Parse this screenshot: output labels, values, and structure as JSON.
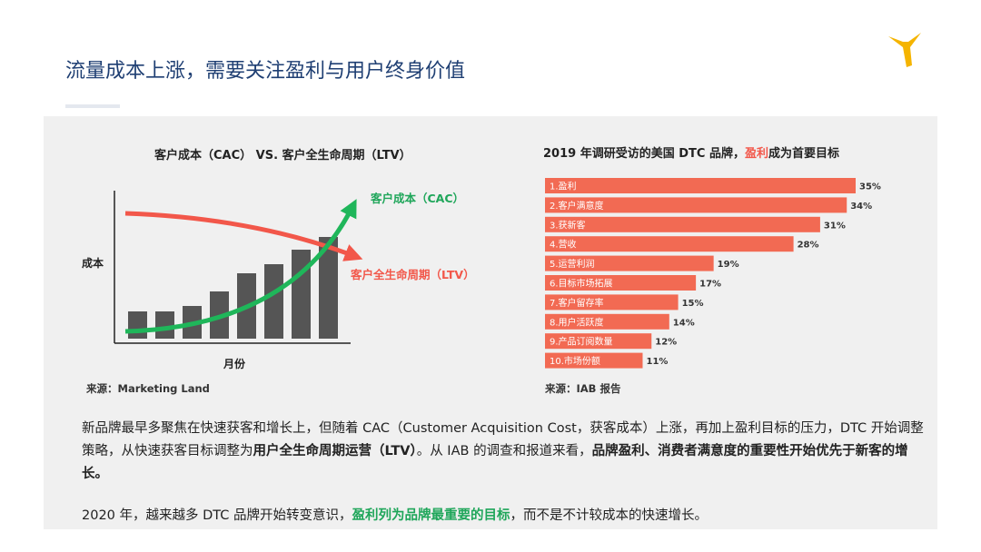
{
  "page": {
    "title": "流量成本上涨，需要关注盈利与用户终身价值"
  },
  "colors": {
    "title": "#1f3f73",
    "cac": "#1fb65a",
    "ltv": "#f2574a",
    "bars_left": "#555555",
    "bars_right": "#f26a53",
    "logo": "#f5b400"
  },
  "chart_data": [
    {
      "type": "bar",
      "title": "客户成本（CAC） VS. 客户全生命周期（LTV）",
      "xlabel": "月份",
      "ylabel": "成本",
      "categories": [
        "",
        "",
        "",
        "",
        "",
        "",
        "",
        ""
      ],
      "series": [
        {
          "name": "",
          "values": [
            1.5,
            1.5,
            1.8,
            2.6,
            3.6,
            4.1,
            4.9,
            5.6
          ]
        }
      ],
      "ylim": [
        0,
        8
      ],
      "overlays": [
        {
          "name": "客户成本（CAC）",
          "trend": "rising",
          "color": "#1fb65a"
        },
        {
          "name": "客户全生命周期（LTV）",
          "trend": "falling",
          "color": "#f2574a"
        }
      ],
      "source": "来源：Marketing Land"
    },
    {
      "type": "bar",
      "orientation": "horizontal",
      "title_parts": [
        "2019 年调研受访的美国 DTC 品牌，",
        "盈利",
        "成为首要目标"
      ],
      "categories": [
        "1.盈利",
        "2.客户满意度",
        "3.获新客",
        "4.营收",
        "5.运营利润",
        "6.目标市场拓展",
        "7.客户留存率",
        "8.用户活跃度",
        "9.产品订阅数量",
        "10.市场份额"
      ],
      "values": [
        35,
        34,
        31,
        28,
        19,
        17,
        15,
        14,
        12,
        11
      ],
      "value_labels": [
        "35%",
        "34%",
        "31%",
        "28%",
        "19%",
        "17%",
        "15%",
        "14%",
        "12%",
        "11%"
      ],
      "xlim": [
        0,
        35
      ],
      "source": "来源：IAB 报告"
    }
  ],
  "text": {
    "p1_a": "新品牌最早多聚焦在快速获客和增长上，但随着 CAC（Customer Acquisition Cost，获客成本）上涨，再加上盈利目标的压力，DTC 开始调整策略，从快速获客目标调整为",
    "p1_b": "用户全生命周期运营（LTV）",
    "p1_c": "。从 IAB 的调查和报道来看，",
    "p1_d": "品牌盈利、消费者满意度的重要性开始优先于新客的增长。",
    "p2_a": "2020 年，越来越多 DTC 品牌开始转变意识，",
    "p2_b": "盈利列为品牌最重要的目标",
    "p2_c": "，而不是不计较成本的快速增长。"
  }
}
